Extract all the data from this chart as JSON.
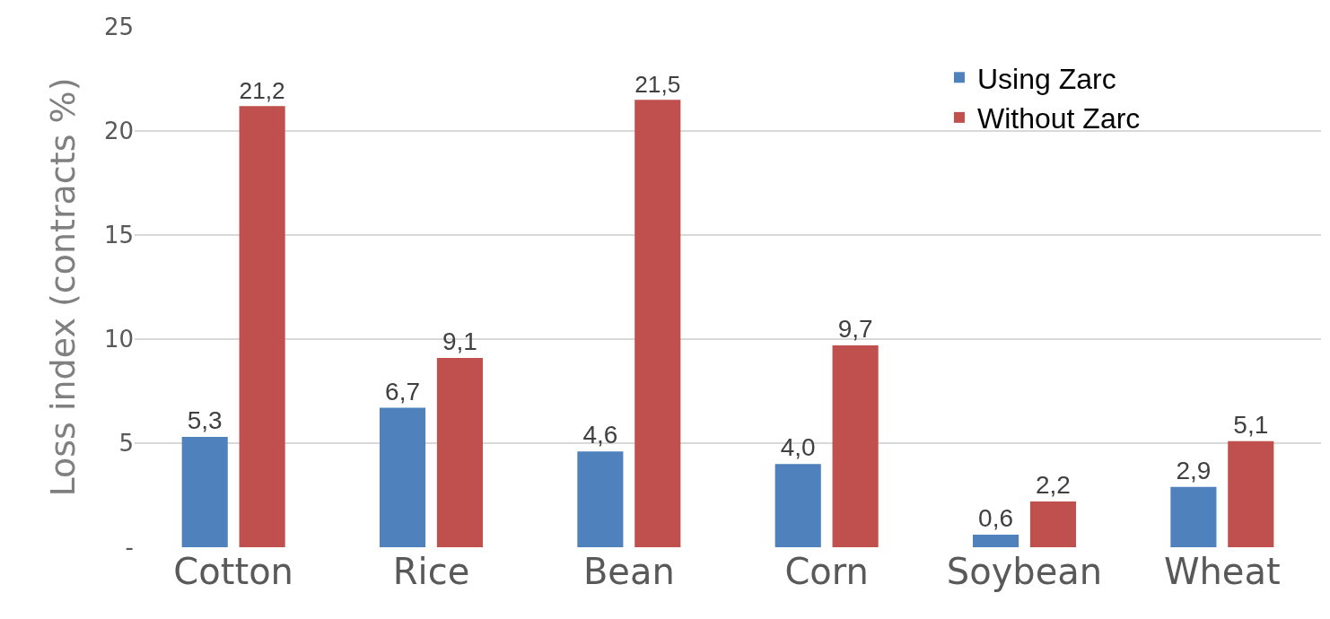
{
  "chart_data": {
    "type": "bar",
    "ylabel": "Loss index (contracts %)",
    "categories": [
      "Cotton",
      "Rice",
      "Bean",
      "Corn",
      "Soybean",
      "Wheat"
    ],
    "series": [
      {
        "name": "Using Zarc",
        "color": "#4f81bd",
        "values": [
          5.3,
          6.7,
          4.6,
          4.0,
          0.6,
          2.9
        ],
        "value_labels": [
          "5,3",
          "6,7",
          "4,6",
          "4,0",
          "0,6",
          "2,9"
        ]
      },
      {
        "name": "Without Zarc",
        "color": "#c0504d",
        "values": [
          21.2,
          9.1,
          21.5,
          9.7,
          2.2,
          5.1
        ],
        "value_labels": [
          "21,2",
          "9,1",
          "21,5",
          "9,7",
          "2,2",
          "5,1"
        ]
      }
    ],
    "ylim": [
      0,
      25
    ],
    "yticks": [
      {
        "value": 0,
        "label": "-"
      },
      5,
      10,
      15,
      20,
      25
    ],
    "grid": "y",
    "legend": "top right"
  }
}
